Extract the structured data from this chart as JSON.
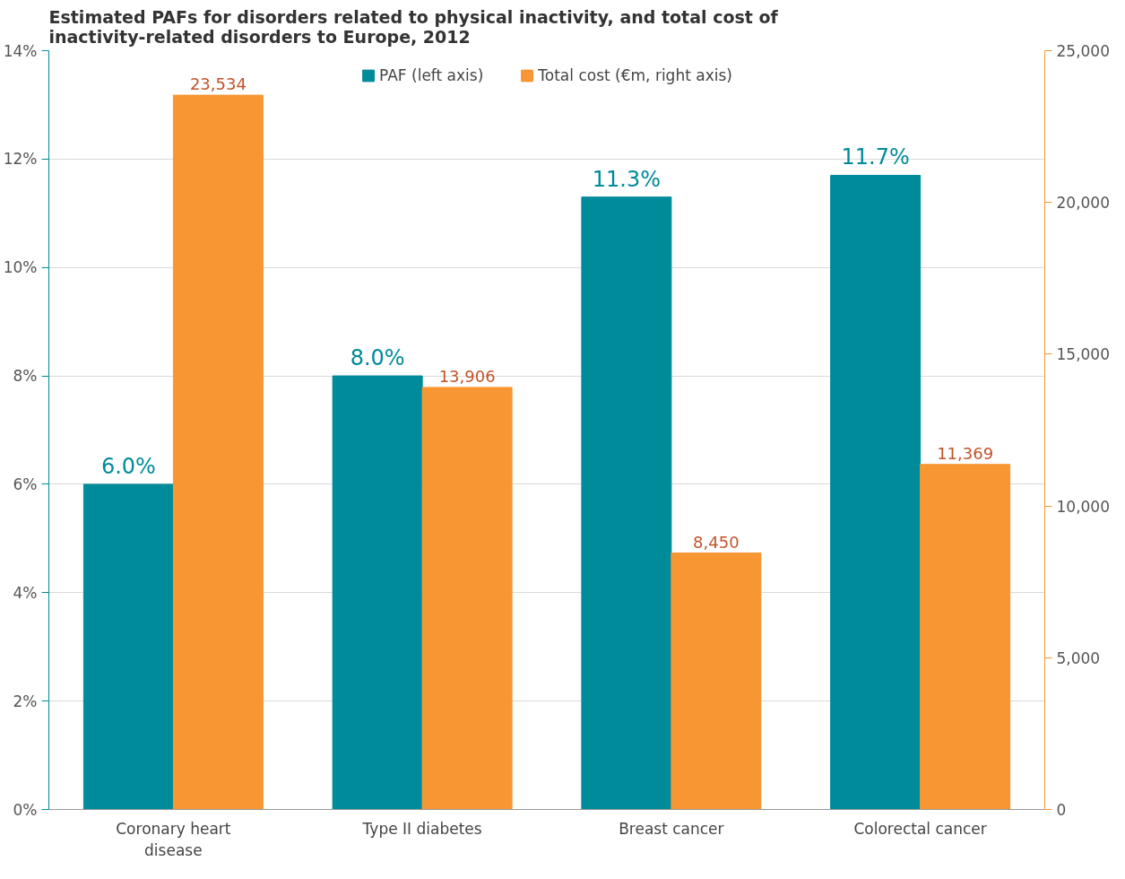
{
  "chart_data": {
    "type": "bar",
    "title": "Estimated PAFs for disorders related to physical inactivity, and total cost of inactivity-related disorders to Europe, 2012",
    "categories": [
      "Coronary heart disease",
      "Type II diabetes",
      "Breast cancer",
      "Colorectal cancer"
    ],
    "series": [
      {
        "name": "PAF (left axis)",
        "color": "#008b9a",
        "values": [
          6.0,
          8.0,
          11.3,
          11.7
        ],
        "value_labels": [
          "6.0%",
          "8.0%",
          "11.3%",
          "11.7%"
        ]
      },
      {
        "name": "Total cost (€m, right axis)",
        "color": "#f79633",
        "axis": "y2",
        "values": [
          23534,
          13906,
          8450,
          11369
        ],
        "value_labels": [
          "23,534",
          "13,906",
          "8,450",
          "11,369"
        ]
      }
    ],
    "ylim": [
      0,
      14
    ],
    "yticks": [
      {
        "value": 0,
        "label": "0%"
      },
      {
        "value": 2,
        "label": "2%"
      },
      {
        "value": 4,
        "label": "4%"
      },
      {
        "value": 6,
        "label": "6%"
      },
      {
        "value": 8,
        "label": "8%"
      },
      {
        "value": 10,
        "label": "10%"
      },
      {
        "value": 12,
        "label": "12%"
      },
      {
        "value": 14,
        "label": "14%"
      }
    ],
    "y2lim": [
      0,
      25000
    ],
    "y2ticks": [
      0,
      {
        "value": 5000,
        "label": "5,000"
      },
      {
        "value": 10000,
        "label": "10,000"
      },
      {
        "value": 15000,
        "label": "15,000"
      },
      {
        "value": 20000,
        "label": "20,000"
      },
      {
        "value": 25000,
        "label": "25,000"
      }
    ],
    "grid": "y",
    "legend": "top"
  }
}
